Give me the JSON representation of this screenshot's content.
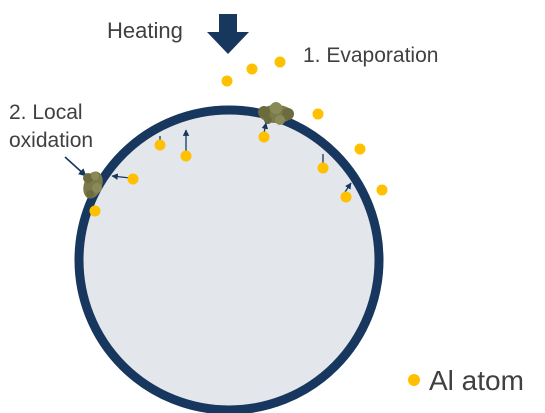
{
  "labels": {
    "heating": "Heating",
    "evaporation": "1. Evaporation",
    "local_oxidation_line1": "2. Local",
    "local_oxidation_line2": "oxidation",
    "legend_al_atom": "Al atom"
  },
  "colors": {
    "particle_outline": "#17375e",
    "particle_fill": "#e3e6ea",
    "al_atom": "#ffc000",
    "oxide_cluster": "#7a7a4a",
    "arrow": "#17375e",
    "text": "#404040"
  },
  "icons": {
    "heating_arrow": "down-arrow-icon",
    "legend_marker": "circle-icon"
  }
}
